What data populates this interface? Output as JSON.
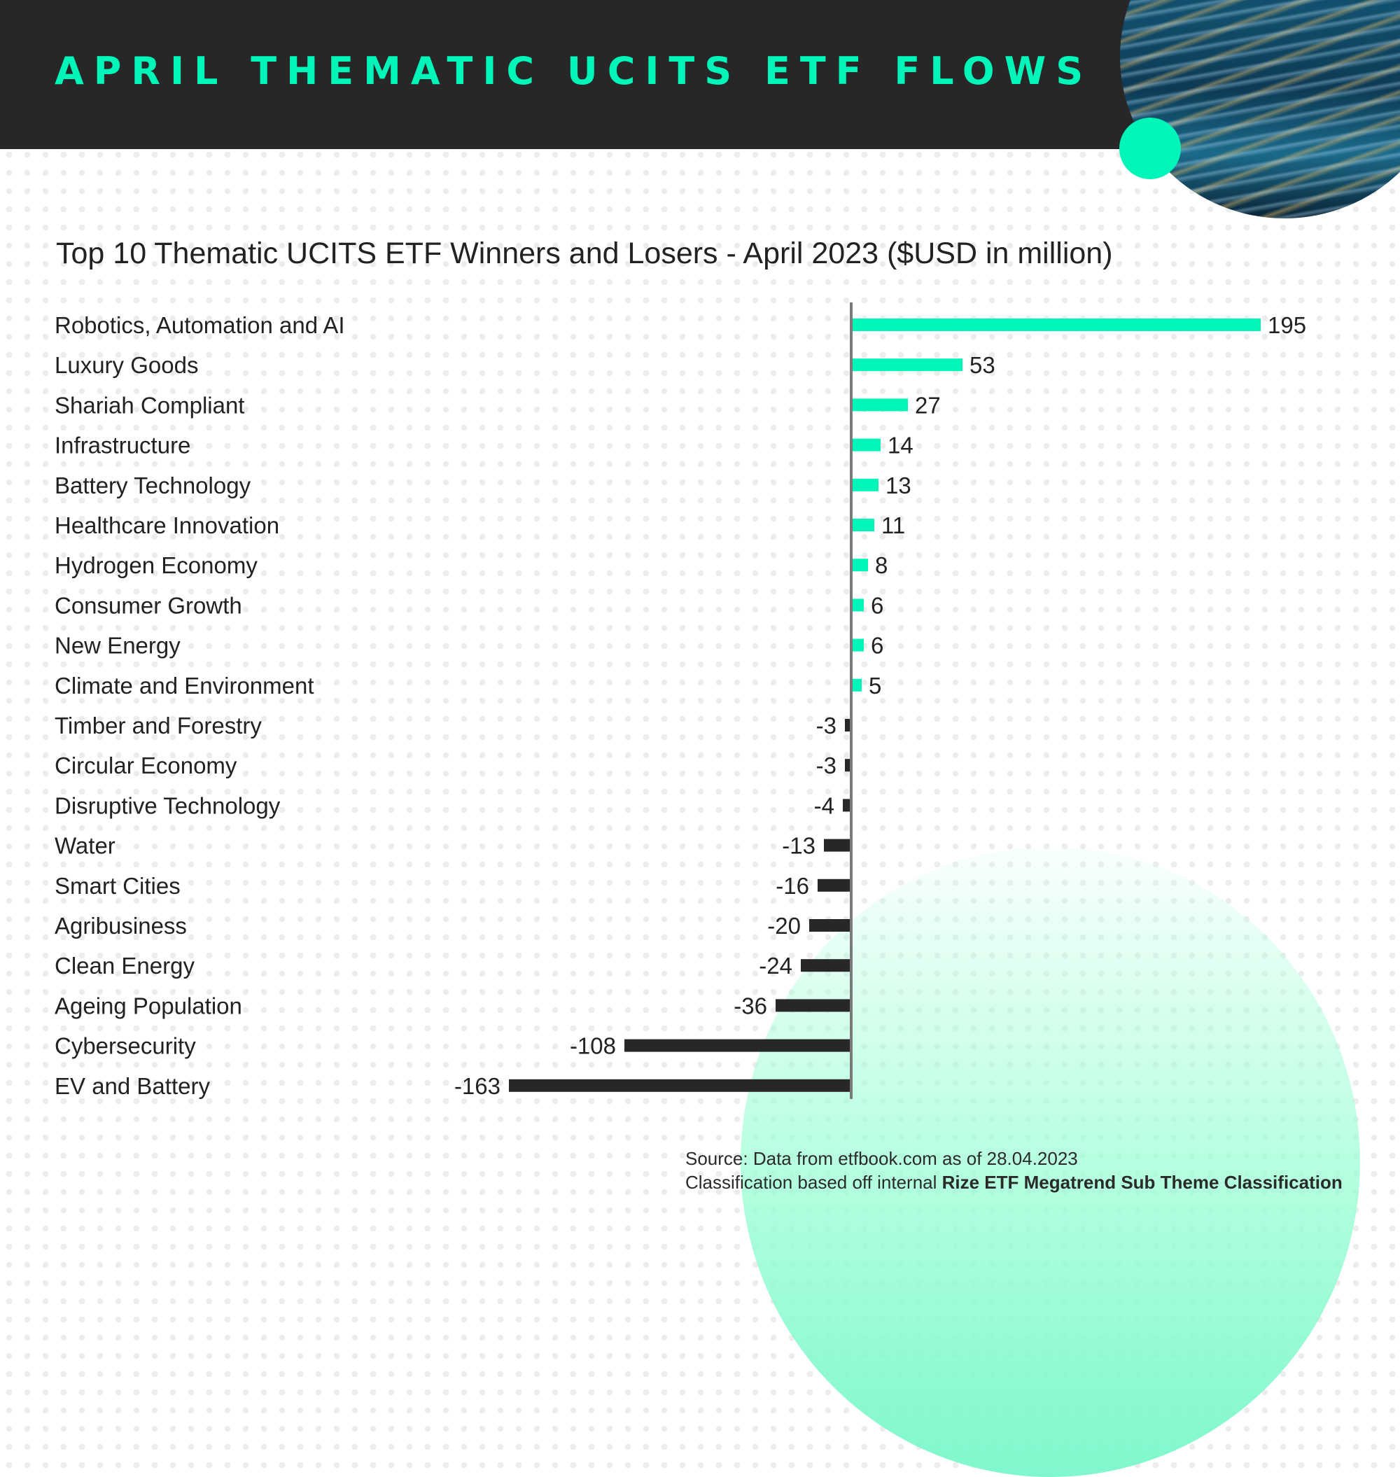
{
  "header": {
    "title": "APRIL THEMATIC UCITS ETF FLOWS"
  },
  "colors": {
    "header_bg": "#272727",
    "accent": "#00f5b9",
    "positive_bar": "#00f5b9",
    "negative_bar": "#272727",
    "axis": "#7a7a7a"
  },
  "footer": {
    "source": "Source: Data from etfbook.com as of 28.04.2023",
    "classification_prefix": "Classification based off internal ",
    "classification_bold": "Rize ETF Megatrend Sub Theme Classification"
  },
  "chart_data": {
    "type": "bar",
    "orientation": "horizontal",
    "title": "Top 10 Thematic UCITS ETF Winners and Losers - April 2023 ($USD in million)",
    "categories": [
      "Robotics, Automation and AI",
      "Luxury Goods",
      "Shariah Compliant",
      "Infrastructure",
      "Battery Technology",
      "Healthcare Innovation",
      "Hydrogen Economy",
      "Consumer Growth",
      "New Energy",
      "Climate and Environment",
      "Timber and Forestry",
      "Circular Economy",
      "Disruptive Technology",
      "Water",
      "Smart Cities",
      "Agribusiness",
      "Clean Energy",
      "Ageing Population",
      "Cybersecurity",
      "EV and Battery"
    ],
    "values": [
      195,
      53,
      27,
      14,
      13,
      11,
      8,
      6,
      6,
      5,
      -3,
      -3,
      -4,
      -13,
      -16,
      -20,
      -24,
      -36,
      -108,
      -163
    ],
    "xlim": [
      -163,
      195
    ],
    "grid": false,
    "legend": "none"
  }
}
